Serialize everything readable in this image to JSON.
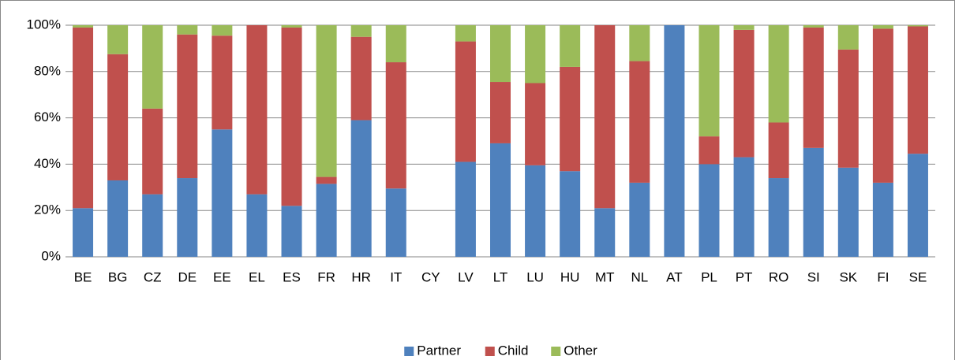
{
  "chart_data": {
    "type": "stacked_bar",
    "categories": [
      "BE",
      "BG",
      "CZ",
      "DE",
      "EE",
      "EL",
      "ES",
      "FR",
      "HR",
      "IT",
      "CY",
      "LV",
      "LT",
      "LU",
      "HU",
      "MT",
      "NL",
      "AT",
      "PL",
      "PT",
      "RO",
      "SI",
      "SK",
      "FI",
      "SE"
    ],
    "series": [
      {
        "name": "Partner",
        "color": "#4f81bd",
        "values": [
          21,
          33,
          27,
          34,
          55,
          27,
          22,
          31.5,
          59,
          29.5,
          null,
          41,
          49,
          39.5,
          37,
          21,
          32,
          100,
          40,
          43,
          34,
          47,
          38.5,
          32,
          44.5
        ]
      },
      {
        "name": "Child",
        "color": "#c0504d",
        "values": [
          78,
          54.5,
          37,
          62,
          40.5,
          73,
          77,
          3,
          36,
          54.5,
          null,
          52,
          26.5,
          35.5,
          45,
          79,
          52.5,
          0,
          12,
          55,
          24,
          52,
          51,
          66.5,
          55
        ]
      },
      {
        "name": "Other",
        "color": "#9bbb59",
        "values": [
          1,
          12.5,
          36,
          4,
          4.5,
          0,
          1,
          65.5,
          5,
          16,
          null,
          7,
          24.5,
          25,
          18,
          0,
          15.5,
          0,
          48,
          2,
          42,
          1,
          10.5,
          1.5,
          0.5
        ]
      }
    ],
    "ylim": [
      0,
      100
    ],
    "yticks": [
      {
        "value": 0,
        "label": "0%"
      },
      {
        "value": 20,
        "label": "20%"
      },
      {
        "value": 40,
        "label": "40%"
      },
      {
        "value": 60,
        "label": "60%"
      },
      {
        "value": 80,
        "label": "80%"
      },
      {
        "value": 100,
        "label": "100%"
      }
    ],
    "grid": true,
    "legend": "bottom"
  }
}
